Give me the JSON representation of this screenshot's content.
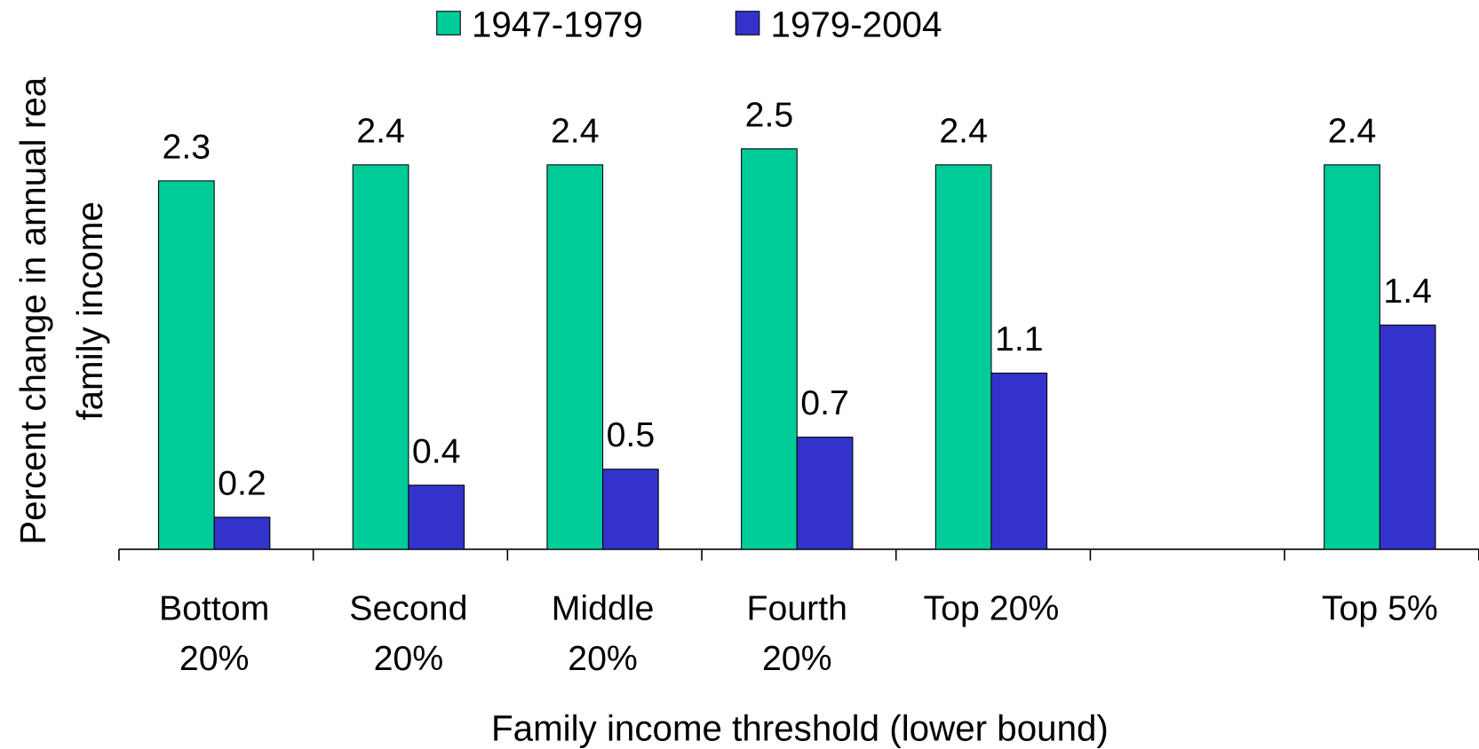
{
  "chart_data": {
    "type": "bar",
    "x_label": "Family income threshold (lower bound)",
    "y_label": "Percent change in annual rea\nfamily income",
    "categories": [
      "Bottom\n20%",
      "Second\n20%",
      "Middle\n20%",
      "Fourth\n20%",
      "Top 20%",
      null,
      "Top 5%"
    ],
    "series": [
      {
        "name": "1947-1979",
        "color": "#00cc99",
        "values": [
          2.3,
          2.4,
          2.4,
          2.5,
          2.4,
          null,
          2.4
        ]
      },
      {
        "name": "1979-2004",
        "color": "#3333cc",
        "values": [
          0.2,
          0.4,
          0.5,
          0.7,
          1.1,
          null,
          1.4
        ]
      }
    ],
    "ylim": [
      0,
      3
    ],
    "legend": "top"
  }
}
